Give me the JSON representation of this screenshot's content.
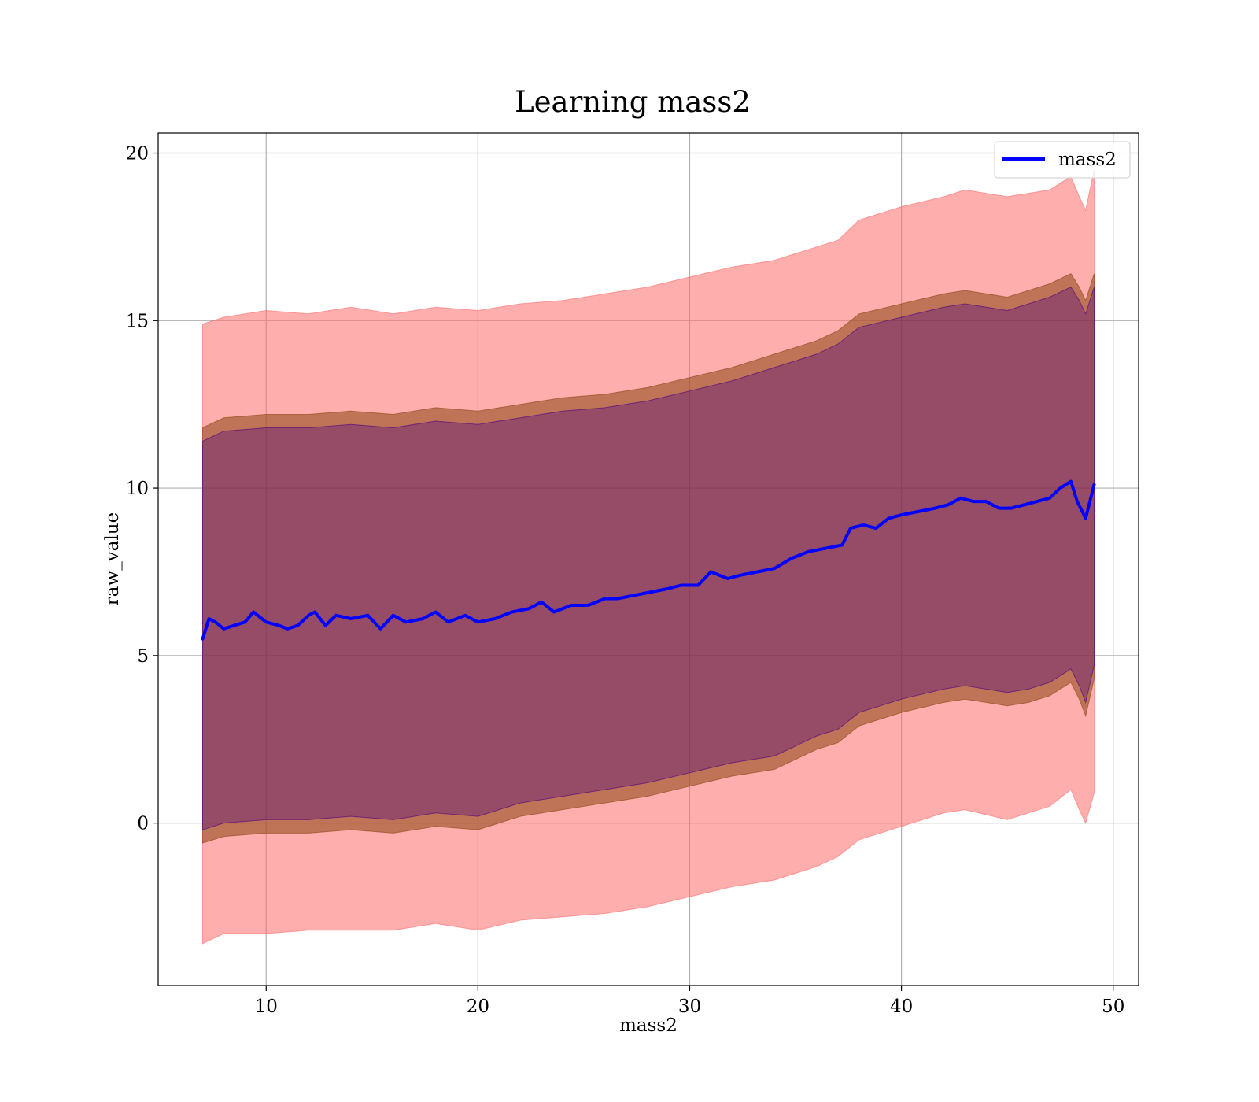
{
  "chart_data": {
    "type": "line",
    "title": "Learning mass2",
    "xlabel": "mass2",
    "ylabel": "raw_value",
    "xlim": [
      4.9,
      51.2
    ],
    "ylim": [
      -4.85,
      20.6
    ],
    "xticks": [
      10,
      20,
      30,
      40,
      50
    ],
    "yticks": [
      0,
      5,
      10,
      15,
      20
    ],
    "grid": true,
    "legend": {
      "placement": "top-right",
      "entries": [
        "mass2"
      ]
    },
    "colors": {
      "line": "#0000ff",
      "outer_band": "#ff6b6b",
      "inner_band": "#8b4513",
      "mean_band": "#4b0082"
    },
    "series": [
      {
        "name": "mass2",
        "style": "line",
        "x": [
          7.0,
          7.3,
          7.6,
          8.0,
          8.5,
          9.0,
          9.4,
          10.0,
          10.6,
          11.0,
          11.5,
          12.0,
          12.3,
          12.8,
          13.3,
          14.0,
          14.8,
          15.4,
          16.0,
          16.6,
          17.4,
          18.0,
          18.6,
          19.4,
          20.0,
          20.8,
          21.6,
          22.4,
          23.0,
          23.6,
          24.4,
          25.2,
          26.0,
          26.6,
          27.4,
          28.2,
          29.0,
          29.6,
          30.4,
          31.0,
          31.8,
          32.4,
          33.2,
          34.0,
          34.8,
          35.6,
          36.4,
          37.2,
          37.6,
          38.2,
          38.8,
          39.4,
          40.0,
          40.8,
          41.6,
          42.2,
          42.8,
          43.4,
          44.0,
          44.6,
          45.2,
          45.8,
          46.4,
          47.0,
          47.5,
          48.0,
          48.3,
          48.7,
          49.1
        ],
        "y": [
          5.5,
          6.1,
          6.0,
          5.8,
          5.9,
          6.0,
          6.3,
          6.0,
          5.9,
          5.8,
          5.9,
          6.2,
          6.3,
          5.9,
          6.2,
          6.1,
          6.2,
          5.8,
          6.2,
          6.0,
          6.1,
          6.3,
          6.0,
          6.2,
          6.0,
          6.1,
          6.3,
          6.4,
          6.6,
          6.3,
          6.5,
          6.5,
          6.7,
          6.7,
          6.8,
          6.9,
          7.0,
          7.1,
          7.1,
          7.5,
          7.3,
          7.4,
          7.5,
          7.6,
          7.9,
          8.1,
          8.2,
          8.3,
          8.8,
          8.9,
          8.8,
          9.1,
          9.2,
          9.3,
          9.4,
          9.5,
          9.7,
          9.6,
          9.6,
          9.4,
          9.4,
          9.5,
          9.6,
          9.7,
          10.0,
          10.2,
          9.6,
          9.1,
          10.1
        ]
      },
      {
        "name": "",
        "style": "band",
        "x": [
          7.0,
          8.0,
          10.0,
          12.0,
          14.0,
          16.0,
          18.0,
          20.0,
          22.0,
          24.0,
          26.0,
          28.0,
          30.0,
          32.0,
          34.0,
          36.0,
          37.0,
          38.0,
          40.0,
          42.0,
          43.0,
          45.0,
          46.0,
          47.0,
          48.0,
          48.4,
          48.7,
          49.1
        ],
        "lower": [
          -3.6,
          -3.3,
          -3.3,
          -3.2,
          -3.2,
          -3.2,
          -3.0,
          -3.2,
          -2.9,
          -2.8,
          -2.7,
          -2.5,
          -2.2,
          -1.9,
          -1.7,
          -1.3,
          -1.0,
          -0.5,
          -0.1,
          0.3,
          0.4,
          0.1,
          0.3,
          0.5,
          1.0,
          0.4,
          0.0,
          0.9
        ],
        "upper": [
          14.9,
          15.1,
          15.3,
          15.2,
          15.4,
          15.2,
          15.4,
          15.3,
          15.5,
          15.6,
          15.8,
          16.0,
          16.3,
          16.6,
          16.8,
          17.2,
          17.4,
          18.0,
          18.4,
          18.7,
          18.9,
          18.7,
          18.8,
          18.9,
          19.3,
          18.7,
          18.3,
          19.5
        ]
      },
      {
        "name": "",
        "style": "band",
        "x": [
          7.0,
          8.0,
          10.0,
          12.0,
          14.0,
          16.0,
          18.0,
          20.0,
          22.0,
          24.0,
          26.0,
          28.0,
          30.0,
          32.0,
          34.0,
          36.0,
          37.0,
          38.0,
          40.0,
          42.0,
          43.0,
          45.0,
          46.0,
          47.0,
          48.0,
          48.4,
          48.7,
          49.1
        ],
        "lower": [
          -0.6,
          -0.4,
          -0.3,
          -0.3,
          -0.2,
          -0.3,
          -0.1,
          -0.2,
          0.2,
          0.4,
          0.6,
          0.8,
          1.1,
          1.4,
          1.6,
          2.2,
          2.4,
          2.9,
          3.3,
          3.6,
          3.7,
          3.5,
          3.6,
          3.8,
          4.2,
          3.7,
          3.2,
          4.3
        ],
        "upper": [
          11.8,
          12.1,
          12.2,
          12.2,
          12.3,
          12.2,
          12.4,
          12.3,
          12.5,
          12.7,
          12.8,
          13.0,
          13.3,
          13.6,
          14.0,
          14.4,
          14.7,
          15.2,
          15.5,
          15.8,
          15.9,
          15.7,
          15.9,
          16.1,
          16.4,
          16.0,
          15.6,
          16.4
        ]
      },
      {
        "name": "",
        "style": "band",
        "x": [
          7.0,
          8.0,
          10.0,
          12.0,
          14.0,
          16.0,
          18.0,
          20.0,
          22.0,
          24.0,
          26.0,
          28.0,
          30.0,
          32.0,
          34.0,
          36.0,
          37.0,
          38.0,
          40.0,
          42.0,
          43.0,
          45.0,
          46.0,
          47.0,
          48.0,
          48.4,
          48.7,
          49.1
        ],
        "lower": [
          -0.2,
          0.0,
          0.1,
          0.1,
          0.2,
          0.1,
          0.3,
          0.2,
          0.6,
          0.8,
          1.0,
          1.2,
          1.5,
          1.8,
          2.0,
          2.6,
          2.8,
          3.3,
          3.7,
          4.0,
          4.1,
          3.9,
          4.0,
          4.2,
          4.6,
          4.1,
          3.6,
          4.7
        ],
        "upper": [
          11.4,
          11.7,
          11.8,
          11.8,
          11.9,
          11.8,
          12.0,
          11.9,
          12.1,
          12.3,
          12.4,
          12.6,
          12.9,
          13.2,
          13.6,
          14.0,
          14.3,
          14.8,
          15.1,
          15.4,
          15.5,
          15.3,
          15.5,
          15.7,
          16.0,
          15.6,
          15.2,
          16.0
        ]
      }
    ]
  }
}
